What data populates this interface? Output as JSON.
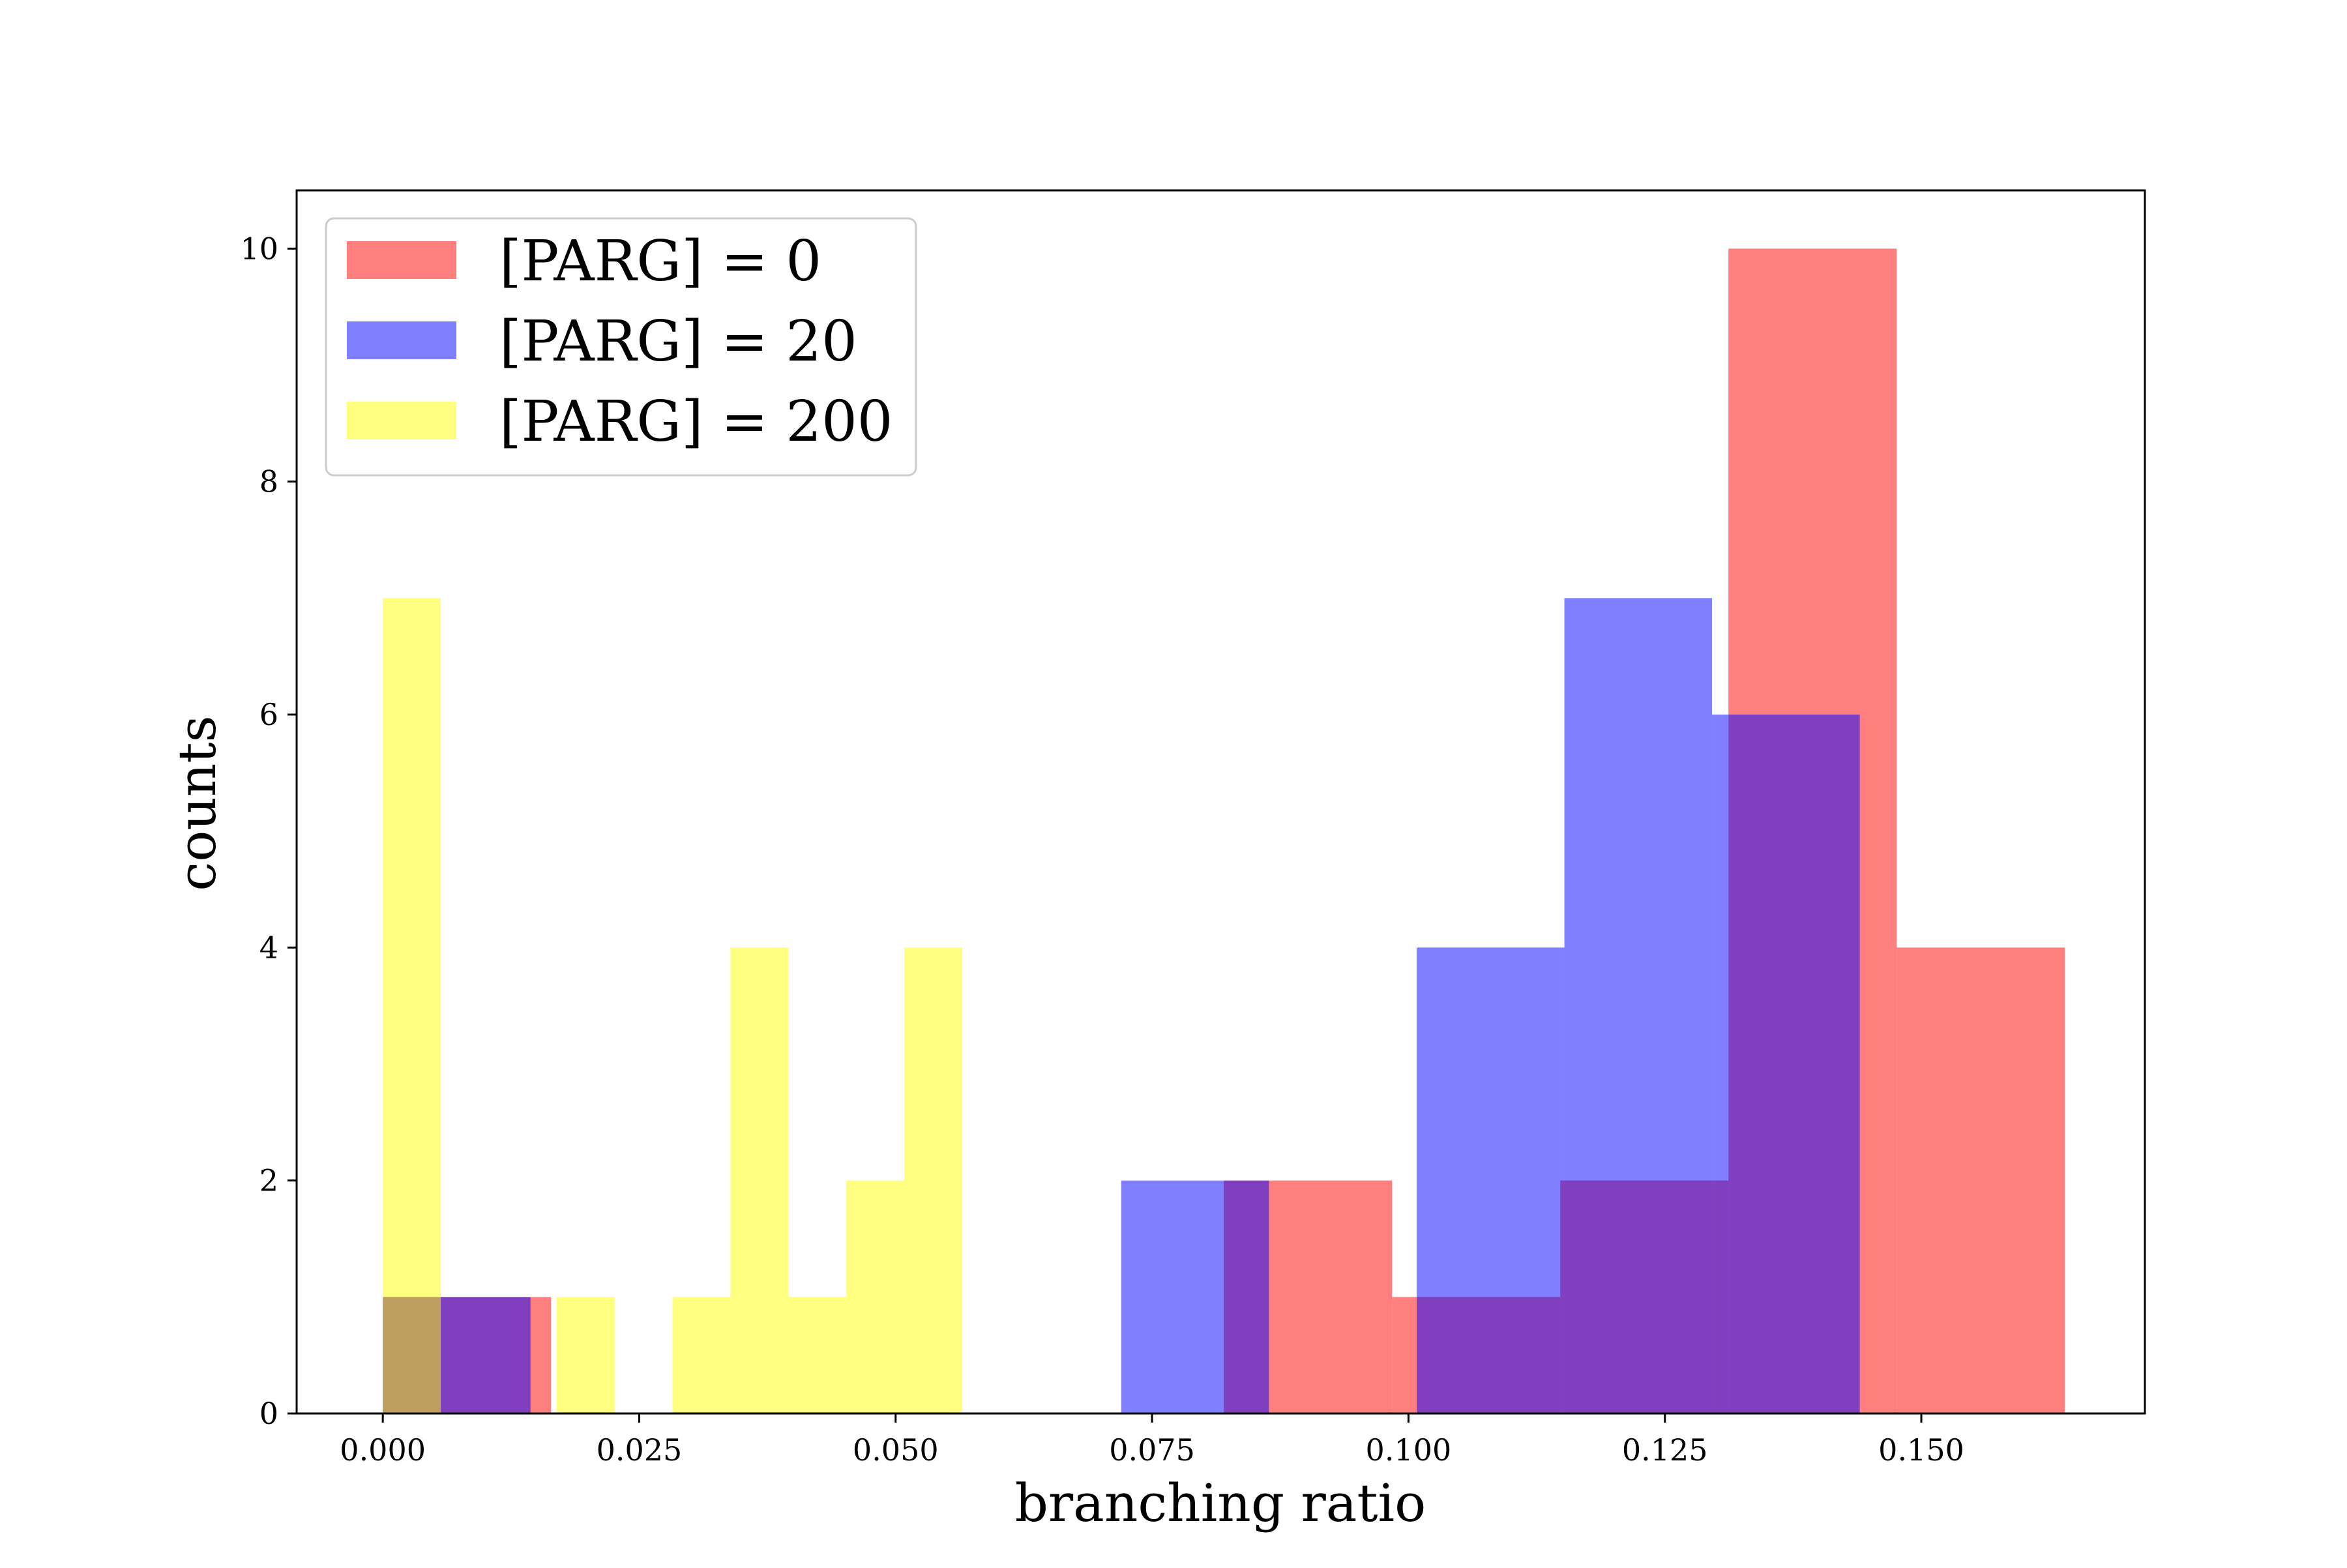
{
  "chart_data": {
    "type": "bar",
    "subtype": "overlapping-histogram",
    "title": "",
    "xlabel": "branching ratio",
    "ylabel": "counts",
    "xlim": [
      -0.0084,
      0.1718
    ],
    "ylim": [
      0,
      10.5
    ],
    "xticks": [
      0.0,
      0.025,
      0.05,
      0.075,
      0.1,
      0.125,
      0.15
    ],
    "xtick_labels": [
      "0.000",
      "0.025",
      "0.050",
      "0.075",
      "0.100",
      "0.125",
      "0.150"
    ],
    "yticks": [
      0,
      2,
      4,
      6,
      8,
      10
    ],
    "ytick_labels": [
      "0",
      "2",
      "4",
      "6",
      "8",
      "10"
    ],
    "grid": false,
    "legend_position": "top-left",
    "series": [
      {
        "name": "[PARG] = 0",
        "color": "#ff0000",
        "alpha": 0.5,
        "bins": [
          {
            "x0": 0.0,
            "x1": 0.0164,
            "count": 1
          },
          {
            "x0": 0.0164,
            "x1": 0.0328,
            "count": 0
          },
          {
            "x0": 0.0328,
            "x1": 0.0492,
            "count": 0
          },
          {
            "x0": 0.0492,
            "x1": 0.0656,
            "count": 0
          },
          {
            "x0": 0.0656,
            "x1": 0.082,
            "count": 0
          },
          {
            "x0": 0.082,
            "x1": 0.0984,
            "count": 2
          },
          {
            "x0": 0.0984,
            "x1": 0.1148,
            "count": 1
          },
          {
            "x0": 0.1148,
            "x1": 0.1312,
            "count": 2
          },
          {
            "x0": 0.1312,
            "x1": 0.1476,
            "count": 10
          },
          {
            "x0": 0.1476,
            "x1": 0.164,
            "count": 4
          }
        ]
      },
      {
        "name": "[PARG] = 20",
        "color": "#0000ff",
        "alpha": 0.5,
        "bins": [
          {
            "x0": 0.0,
            "x1": 0.0144,
            "count": 1
          },
          {
            "x0": 0.0144,
            "x1": 0.0288,
            "count": 0
          },
          {
            "x0": 0.0288,
            "x1": 0.0432,
            "count": 0
          },
          {
            "x0": 0.0432,
            "x1": 0.0576,
            "count": 0
          },
          {
            "x0": 0.0576,
            "x1": 0.072,
            "count": 0
          },
          {
            "x0": 0.072,
            "x1": 0.0864,
            "count": 2
          },
          {
            "x0": 0.0864,
            "x1": 0.1008,
            "count": 0
          },
          {
            "x0": 0.1008,
            "x1": 0.1152,
            "count": 4
          },
          {
            "x0": 0.1152,
            "x1": 0.1296,
            "count": 7
          },
          {
            "x0": 0.1296,
            "x1": 0.144,
            "count": 6
          }
        ]
      },
      {
        "name": "[PARG] = 200",
        "color": "#ffff00",
        "alpha": 0.5,
        "bins": [
          {
            "x0": 0.0,
            "x1": 0.00565,
            "count": 7
          },
          {
            "x0": 0.00565,
            "x1": 0.0113,
            "count": 0
          },
          {
            "x0": 0.0113,
            "x1": 0.01695,
            "count": 0
          },
          {
            "x0": 0.01695,
            "x1": 0.0226,
            "count": 1
          },
          {
            "x0": 0.0226,
            "x1": 0.02825,
            "count": 0
          },
          {
            "x0": 0.02825,
            "x1": 0.0339,
            "count": 1
          },
          {
            "x0": 0.0339,
            "x1": 0.03955,
            "count": 4
          },
          {
            "x0": 0.03955,
            "x1": 0.0452,
            "count": 1
          },
          {
            "x0": 0.0452,
            "x1": 0.05085,
            "count": 2
          },
          {
            "x0": 0.05085,
            "x1": 0.0565,
            "count": 4
          }
        ]
      }
    ]
  }
}
